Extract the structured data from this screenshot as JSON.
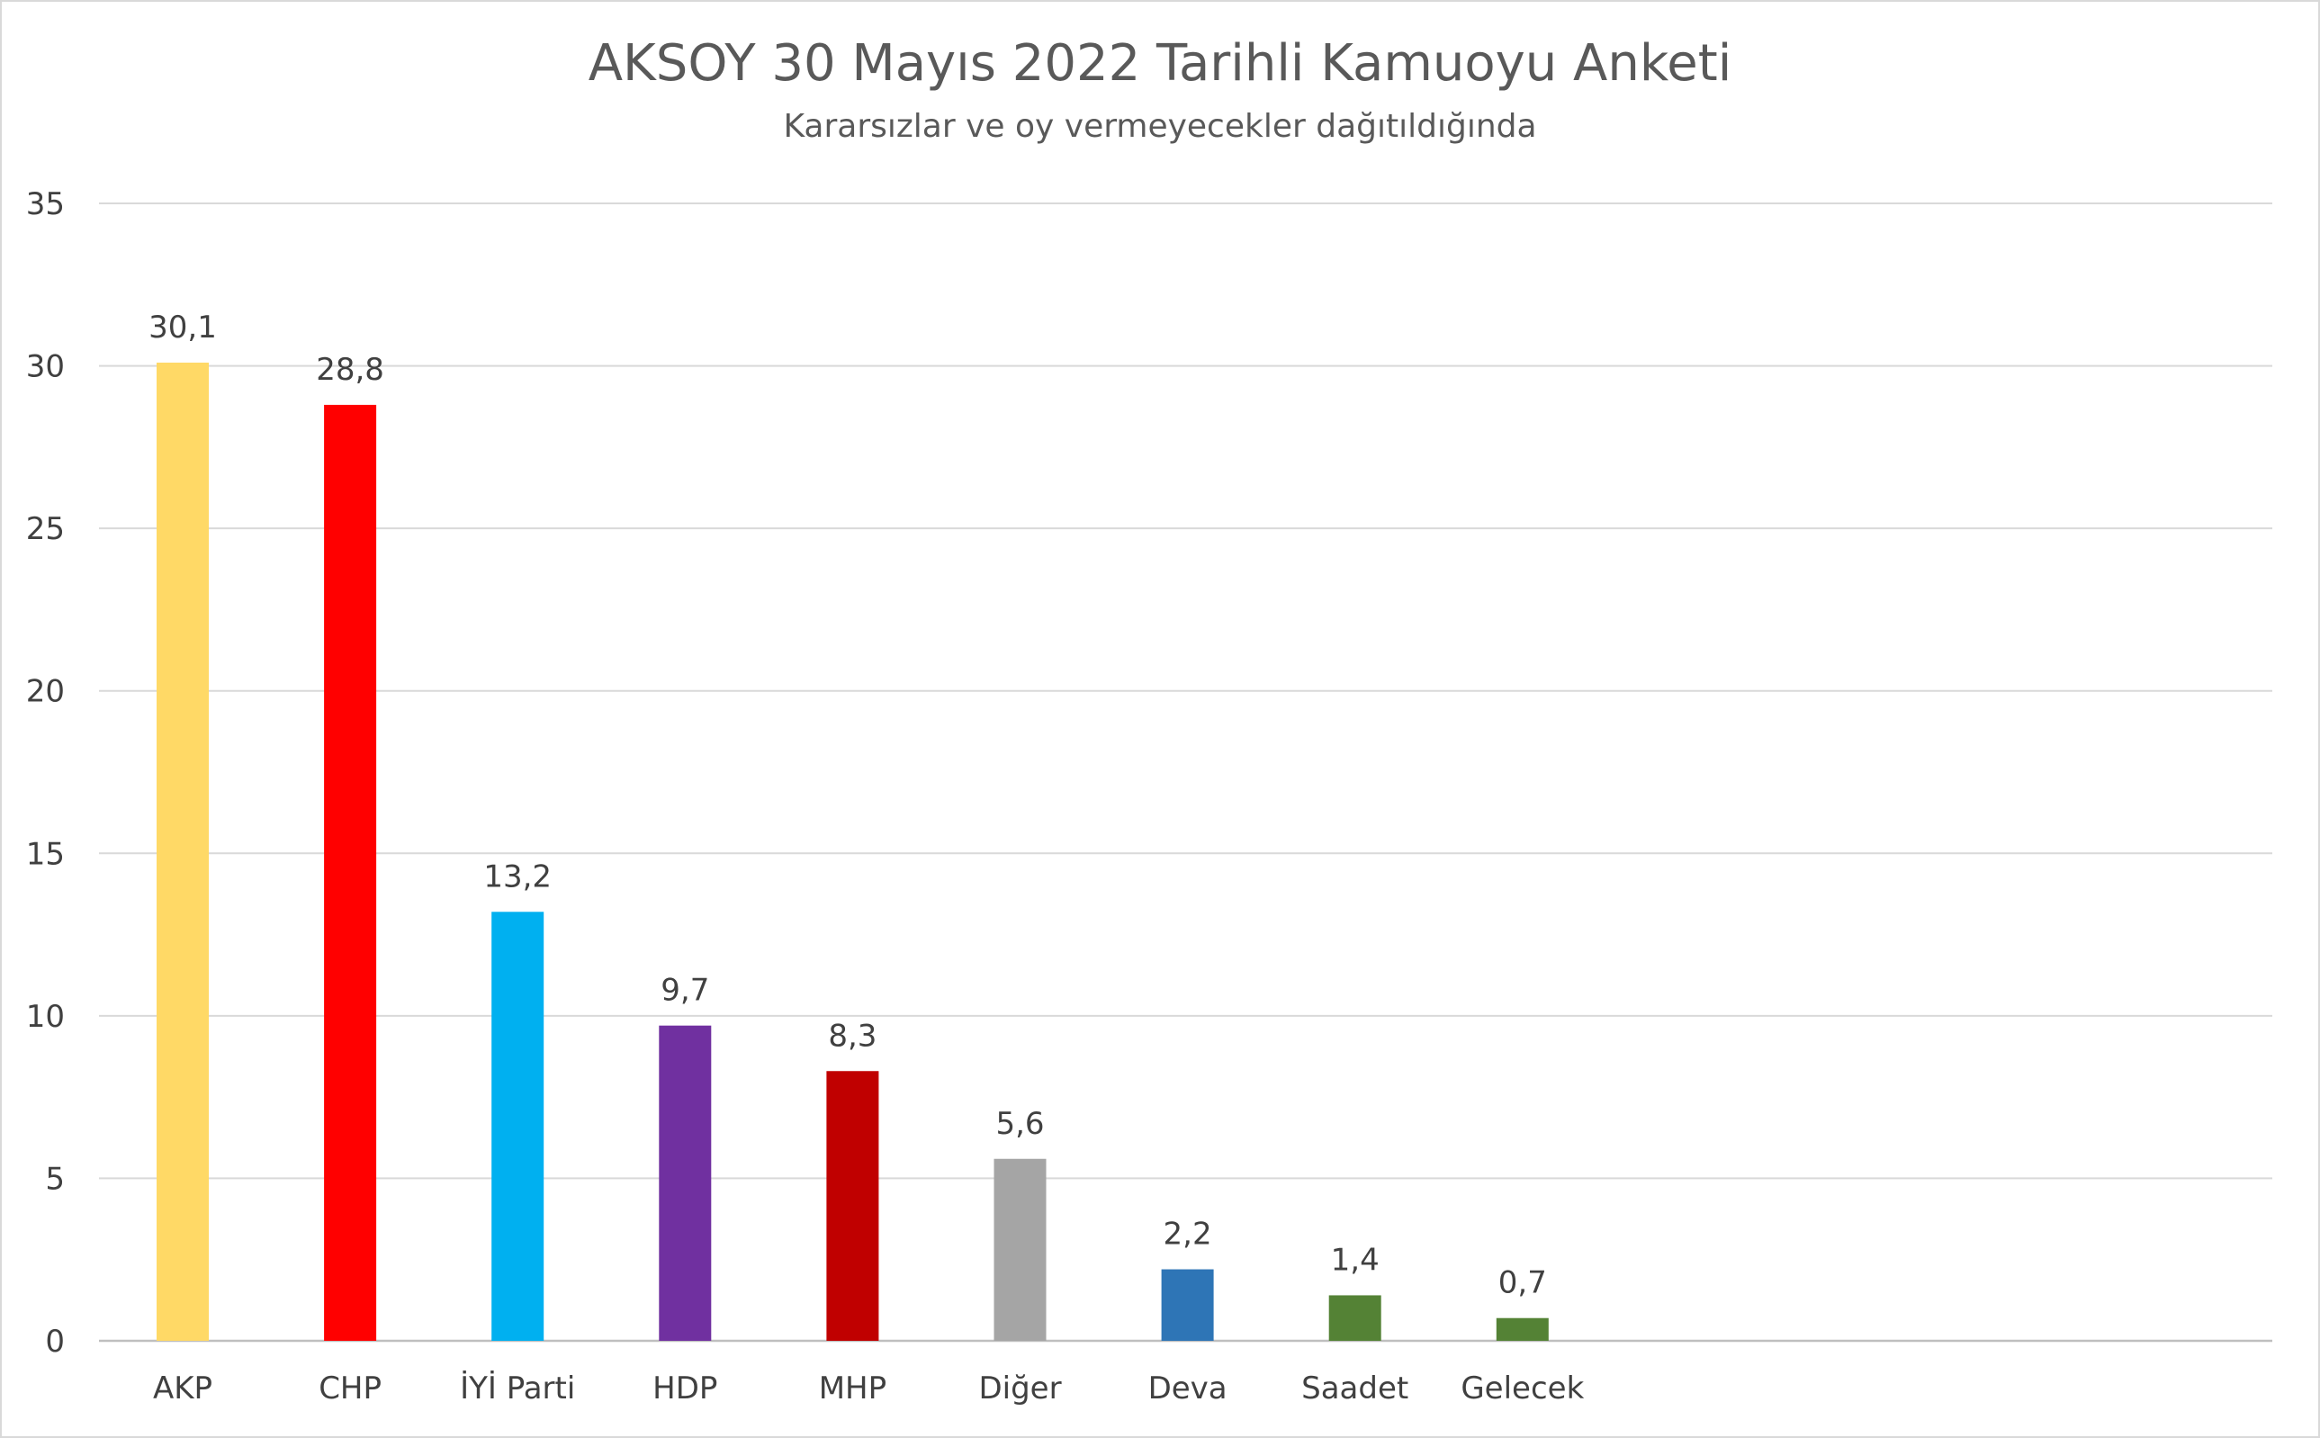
{
  "chart_data": {
    "type": "bar",
    "title": "AKSOY 30 Mayıs 2022 Tarihli Kamuoyu Anketi",
    "subtitle": "Kararsızlar ve oy vermeyecekler dağıtıldığında",
    "xlabel": "",
    "ylabel": "",
    "ylim": [
      0,
      35
    ],
    "yticks": [
      "0",
      "5",
      "10",
      "15",
      "20",
      "25",
      "30",
      "35"
    ],
    "grid": true,
    "legend": "none",
    "categories": [
      "AKP",
      "CHP",
      "İYİ Parti",
      "HDP",
      "MHP",
      "Diğer",
      "Deva",
      "Saadet",
      "Gelecek"
    ],
    "values": [
      30.1,
      28.8,
      13.2,
      9.7,
      8.3,
      5.6,
      2.2,
      1.4,
      0.7
    ],
    "value_labels": [
      "30,1",
      "28,8",
      "13,2",
      "9,7",
      "8,3",
      "5,6",
      "2,2",
      "1,4",
      "0,7"
    ],
    "colors": [
      "#ffd966",
      "#ff0000",
      "#00b0f0",
      "#7030a0",
      "#c00000",
      "#a5a5a5",
      "#2e75b6",
      "#548235",
      "#548235"
    ]
  }
}
